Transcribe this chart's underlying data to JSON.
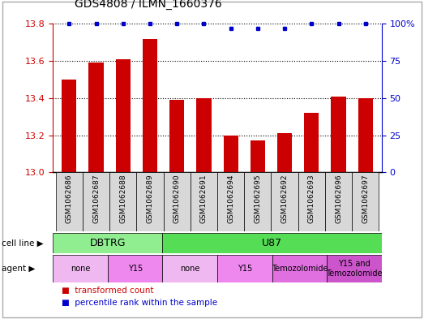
{
  "title": "GDS4808 / ILMN_1660376",
  "samples": [
    "GSM1062686",
    "GSM1062687",
    "GSM1062688",
    "GSM1062689",
    "GSM1062690",
    "GSM1062691",
    "GSM1062694",
    "GSM1062695",
    "GSM1062692",
    "GSM1062693",
    "GSM1062696",
    "GSM1062697"
  ],
  "bar_values": [
    13.5,
    13.59,
    13.61,
    13.72,
    13.39,
    13.4,
    13.2,
    13.17,
    13.21,
    13.32,
    13.41,
    13.4
  ],
  "percentile_values": [
    100,
    100,
    100,
    100,
    100,
    100,
    97,
    97,
    97,
    100,
    100,
    100
  ],
  "bar_color": "#cc0000",
  "percentile_color": "#0000cc",
  "ylim_left": [
    13.0,
    13.8
  ],
  "ylim_right": [
    0,
    100
  ],
  "yticks_left": [
    13.0,
    13.2,
    13.4,
    13.6,
    13.8
  ],
  "yticks_right": [
    0,
    25,
    50,
    75,
    100
  ],
  "cell_line_groups": [
    {
      "label": "DBTRG",
      "start": 0,
      "end": 4,
      "color": "#90ee90"
    },
    {
      "label": "U87",
      "start": 4,
      "end": 12,
      "color": "#55dd55"
    }
  ],
  "agent_groups": [
    {
      "label": "none",
      "start": 0,
      "end": 2,
      "color": "#f0b8f0"
    },
    {
      "label": "Y15",
      "start": 2,
      "end": 4,
      "color": "#ee88ee"
    },
    {
      "label": "none",
      "start": 4,
      "end": 6,
      "color": "#f0b8f0"
    },
    {
      "label": "Y15",
      "start": 6,
      "end": 8,
      "color": "#ee88ee"
    },
    {
      "label": "Temozolomide",
      "start": 8,
      "end": 10,
      "color": "#e070e0"
    },
    {
      "label": "Y15 and\nTemozolomide",
      "start": 10,
      "end": 12,
      "color": "#cc55cc"
    }
  ],
  "legend_red": "transformed count",
  "legend_blue": "percentile rank within the sample",
  "cell_line_label": "cell line",
  "agent_label": "agent",
  "sample_row_color": "#d8d8d8",
  "bar_width": 0.55,
  "fig_width": 5.23,
  "fig_height": 3.93,
  "dpi": 100
}
